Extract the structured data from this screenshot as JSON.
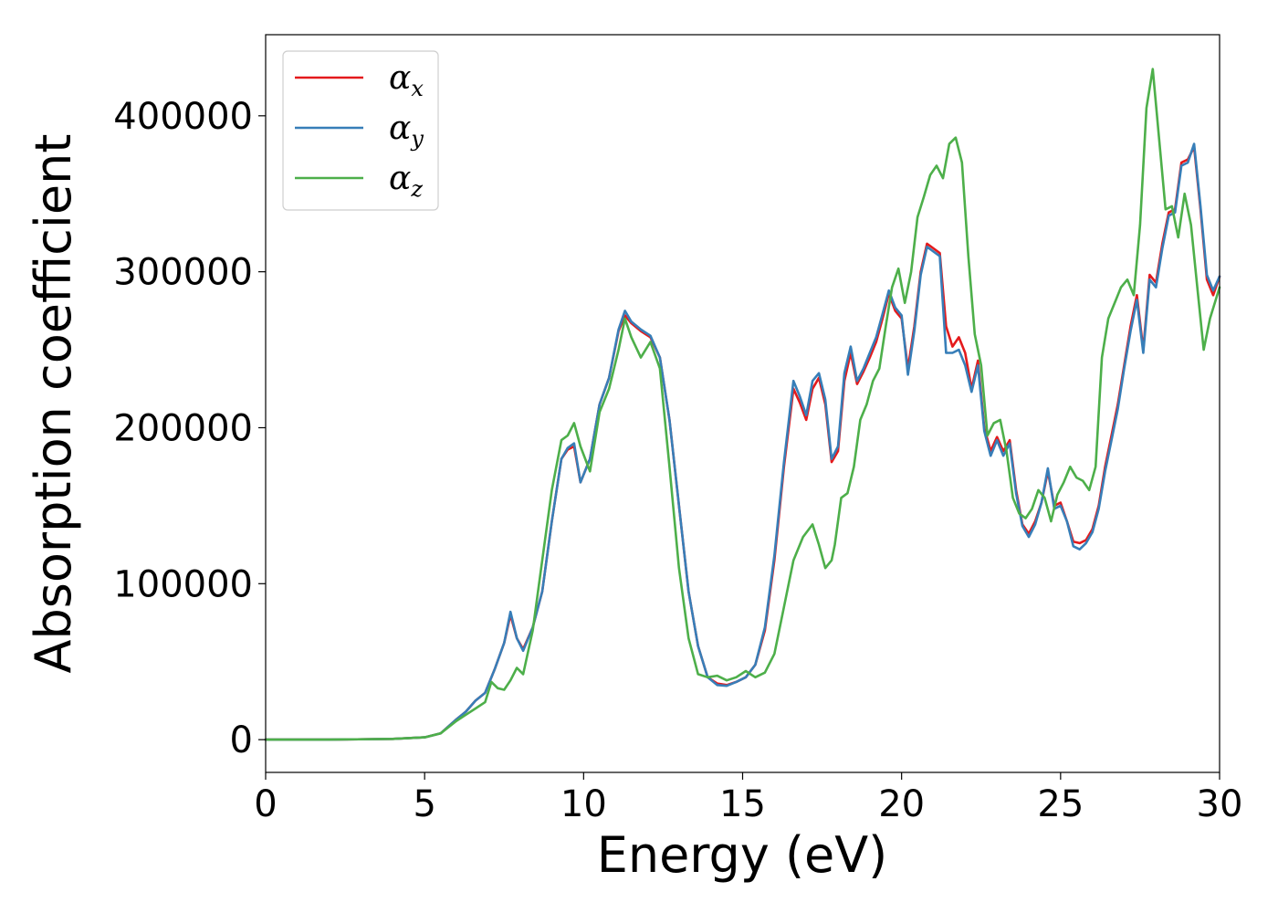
{
  "chart_data": {
    "type": "line",
    "xlabel": "Energy (eV)",
    "ylabel": "Absorption coefficient",
    "xlim": [
      0,
      30
    ],
    "ylim": [
      -21000,
      452000
    ],
    "xticks": [
      0,
      5,
      10,
      15,
      20,
      25,
      30
    ],
    "xtick_labels": [
      "0",
      "5",
      "10",
      "15",
      "20",
      "25",
      "30"
    ],
    "yticks": [
      0,
      100000,
      200000,
      300000,
      400000
    ],
    "ytick_labels": [
      "0",
      "100000",
      "200000",
      "300000",
      "400000"
    ],
    "grid": false,
    "legend_position": "top-left",
    "series": [
      {
        "name": "α",
        "subscript": "x",
        "color": "#e41a1c",
        "x": [
          0,
          2,
          4,
          5,
          5.5,
          6,
          6.3,
          6.6,
          6.9,
          7.2,
          7.5,
          7.7,
          7.9,
          8.1,
          8.4,
          8.7,
          9.0,
          9.3,
          9.5,
          9.7,
          9.9,
          10.2,
          10.5,
          10.8,
          11.1,
          11.3,
          11.5,
          11.8,
          12.1,
          12.4,
          12.7,
          13.0,
          13.3,
          13.6,
          13.9,
          14.2,
          14.5,
          14.8,
          15.1,
          15.4,
          15.7,
          16.0,
          16.3,
          16.6,
          16.8,
          17.0,
          17.2,
          17.4,
          17.6,
          17.8,
          18.0,
          18.2,
          18.4,
          18.6,
          18.8,
          19.0,
          19.2,
          19.4,
          19.6,
          19.8,
          20.0,
          20.2,
          20.4,
          20.6,
          20.8,
          21.0,
          21.2,
          21.4,
          21.6,
          21.8,
          22.0,
          22.2,
          22.4,
          22.6,
          22.8,
          23.0,
          23.2,
          23.4,
          23.6,
          23.8,
          24.0,
          24.2,
          24.4,
          24.6,
          24.8,
          25.0,
          25.2,
          25.4,
          25.6,
          25.8,
          26.0,
          26.2,
          26.4,
          26.6,
          26.8,
          27.0,
          27.2,
          27.4,
          27.6,
          27.8,
          28.0,
          28.2,
          28.4,
          28.6,
          28.8,
          29.0,
          29.2,
          29.4,
          29.6,
          29.8,
          30.0
        ],
        "y": [
          0,
          0,
          500,
          1500,
          4000,
          13000,
          18000,
          25000,
          30000,
          45000,
          62000,
          80000,
          65000,
          58000,
          72000,
          95000,
          140000,
          180000,
          186000,
          188000,
          165000,
          180000,
          215000,
          232000,
          262000,
          272000,
          267000,
          262000,
          258000,
          245000,
          205000,
          150000,
          95000,
          60000,
          40000,
          36000,
          35000,
          37000,
          40000,
          48000,
          70000,
          115000,
          175000,
          225000,
          216000,
          205000,
          225000,
          232000,
          215000,
          178000,
          185000,
          230000,
          248000,
          228000,
          236000,
          245000,
          255000,
          270000,
          286000,
          275000,
          270000,
          238000,
          265000,
          300000,
          318000,
          315000,
          312000,
          265000,
          252000,
          258000,
          248000,
          225000,
          243000,
          200000,
          185000,
          194000,
          185000,
          192000,
          160000,
          138000,
          132000,
          140000,
          152000,
          172000,
          150000,
          152000,
          140000,
          127000,
          126000,
          128000,
          135000,
          150000,
          175000,
          195000,
          215000,
          240000,
          265000,
          285000,
          250000,
          298000,
          293000,
          318000,
          338000,
          340000,
          370000,
          372000,
          380000,
          340000,
          295000,
          285000,
          297000
        ]
      },
      {
        "name": "α",
        "subscript": "y",
        "color": "#377eb8",
        "x": [
          0,
          2,
          4,
          5,
          5.5,
          6,
          6.3,
          6.6,
          6.9,
          7.2,
          7.5,
          7.7,
          7.9,
          8.1,
          8.4,
          8.7,
          9.0,
          9.3,
          9.5,
          9.7,
          9.9,
          10.2,
          10.5,
          10.8,
          11.1,
          11.3,
          11.5,
          11.8,
          12.1,
          12.4,
          12.7,
          13.0,
          13.3,
          13.6,
          13.9,
          14.2,
          14.5,
          14.8,
          15.1,
          15.4,
          15.7,
          16.0,
          16.3,
          16.6,
          16.8,
          17.0,
          17.2,
          17.4,
          17.6,
          17.8,
          18.0,
          18.2,
          18.4,
          18.6,
          18.8,
          19.0,
          19.2,
          19.4,
          19.6,
          19.8,
          20.0,
          20.2,
          20.4,
          20.6,
          20.8,
          21.0,
          21.2,
          21.4,
          21.6,
          21.8,
          22.0,
          22.2,
          22.4,
          22.6,
          22.8,
          23.0,
          23.2,
          23.4,
          23.6,
          23.8,
          24.0,
          24.2,
          24.4,
          24.6,
          24.8,
          25.0,
          25.2,
          25.4,
          25.6,
          25.8,
          26.0,
          26.2,
          26.4,
          26.6,
          26.8,
          27.0,
          27.2,
          27.4,
          27.6,
          27.8,
          28.0,
          28.2,
          28.4,
          28.6,
          28.8,
          29.0,
          29.2,
          29.4,
          29.6,
          29.8,
          30.0
        ],
        "y": [
          0,
          0,
          500,
          1500,
          4000,
          13000,
          18000,
          25000,
          30000,
          45000,
          62000,
          82000,
          65000,
          57000,
          72000,
          95000,
          140000,
          180000,
          187000,
          190000,
          165000,
          180000,
          215000,
          232000,
          263000,
          275000,
          268000,
          263000,
          259000,
          245000,
          205000,
          150000,
          95000,
          60000,
          40000,
          35000,
          34500,
          37000,
          40000,
          48000,
          72000,
          118000,
          178000,
          230000,
          220000,
          208000,
          230000,
          235000,
          218000,
          180000,
          188000,
          235000,
          252000,
          230000,
          238000,
          248000,
          258000,
          273000,
          288000,
          277000,
          272000,
          234000,
          262000,
          298000,
          316000,
          313000,
          310000,
          248000,
          248000,
          250000,
          240000,
          223000,
          240000,
          198000,
          182000,
          192000,
          182000,
          190000,
          158000,
          137000,
          130000,
          138000,
          152000,
          174000,
          148000,
          150000,
          140000,
          124000,
          122000,
          126000,
          133000,
          148000,
          172000,
          192000,
          212000,
          238000,
          262000,
          282000,
          248000,
          295000,
          290000,
          315000,
          336000,
          338000,
          368000,
          370000,
          382000,
          342000,
          298000,
          288000,
          297000
        ]
      },
      {
        "name": "α",
        "subscript": "z",
        "color": "#4daf4a",
        "x": [
          0,
          2,
          4,
          5,
          5.5,
          6,
          6.3,
          6.6,
          6.9,
          7.1,
          7.3,
          7.5,
          7.7,
          7.9,
          8.1,
          8.4,
          8.7,
          9.0,
          9.3,
          9.5,
          9.7,
          9.9,
          10.2,
          10.5,
          10.8,
          11.1,
          11.3,
          11.5,
          11.8,
          12.1,
          12.4,
          12.7,
          13.0,
          13.3,
          13.6,
          13.9,
          14.2,
          14.5,
          14.8,
          15.1,
          15.4,
          15.7,
          16.0,
          16.3,
          16.6,
          16.9,
          17.2,
          17.4,
          17.6,
          17.8,
          17.9,
          18.1,
          18.3,
          18.5,
          18.7,
          18.9,
          19.1,
          19.3,
          19.5,
          19.7,
          19.9,
          20.1,
          20.3,
          20.5,
          20.7,
          20.9,
          21.1,
          21.3,
          21.5,
          21.7,
          21.9,
          22.1,
          22.3,
          22.5,
          22.7,
          22.9,
          23.1,
          23.3,
          23.5,
          23.7,
          23.9,
          24.1,
          24.3,
          24.5,
          24.7,
          24.9,
          25.1,
          25.3,
          25.5,
          25.7,
          25.9,
          26.1,
          26.3,
          26.5,
          26.7,
          26.9,
          27.1,
          27.3,
          27.5,
          27.7,
          27.9,
          28.1,
          28.3,
          28.5,
          28.7,
          28.9,
          29.1,
          29.3,
          29.5,
          29.7,
          30.0
        ],
        "y": [
          0,
          0,
          500,
          1500,
          4000,
          12000,
          16000,
          20000,
          24000,
          37000,
          33000,
          32000,
          38000,
          46000,
          42000,
          70000,
          115000,
          160000,
          192000,
          195000,
          203000,
          188000,
          172000,
          210000,
          225000,
          250000,
          270000,
          258000,
          245000,
          255000,
          238000,
          175000,
          110000,
          65000,
          42000,
          40000,
          41000,
          38000,
          40000,
          44000,
          40000,
          43000,
          55000,
          85000,
          115000,
          130000,
          138000,
          125000,
          110000,
          115000,
          125000,
          155000,
          158000,
          175000,
          205000,
          215000,
          230000,
          238000,
          265000,
          290000,
          302000,
          280000,
          300000,
          335000,
          348000,
          362000,
          368000,
          360000,
          382000,
          386000,
          370000,
          310000,
          260000,
          240000,
          195000,
          203000,
          205000,
          185000,
          155000,
          145000,
          142000,
          148000,
          160000,
          155000,
          140000,
          157000,
          165000,
          175000,
          168000,
          166000,
          160000,
          175000,
          245000,
          270000,
          280000,
          290000,
          295000,
          285000,
          330000,
          405000,
          430000,
          385000,
          340000,
          342000,
          322000,
          350000,
          330000,
          290000,
          250000,
          270000,
          290000
        ]
      }
    ]
  }
}
